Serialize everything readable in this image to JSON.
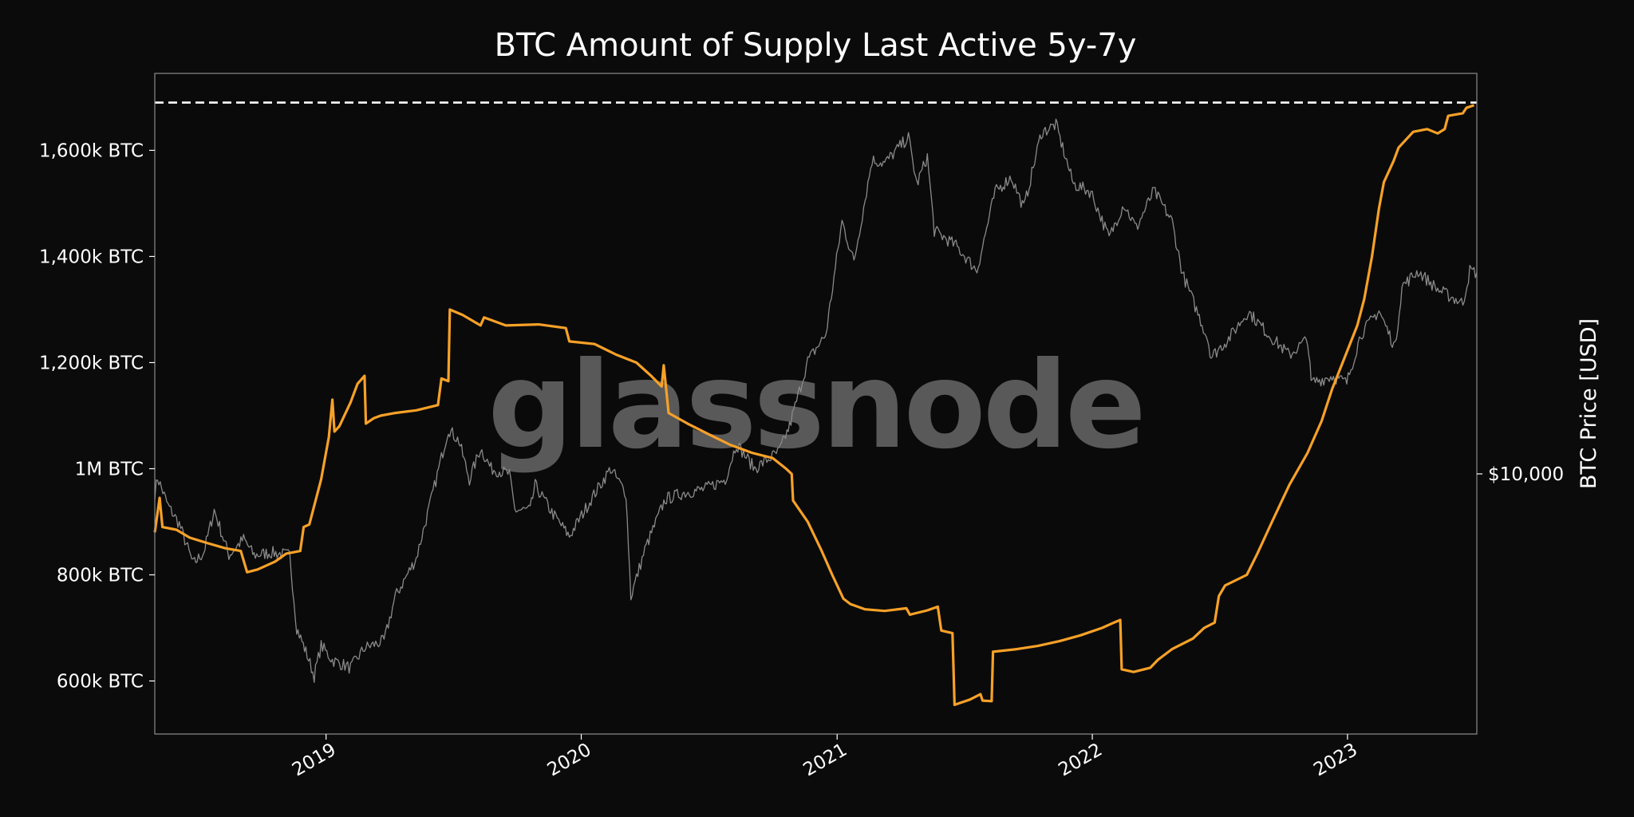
{
  "chart_data": {
    "type": "line",
    "title": "BTC Amount of Supply Last Active 5y-7y",
    "watermark": "glassnode",
    "grid": false,
    "legend": "none",
    "x_range": [
      "2018-05-01",
      "2023-07-05"
    ],
    "x_ticks": [
      {
        "label": "2019",
        "date": "2019-01-01"
      },
      {
        "label": "2020",
        "date": "2020-01-01"
      },
      {
        "label": "2021",
        "date": "2021-01-01"
      },
      {
        "label": "2022",
        "date": "2022-01-01"
      },
      {
        "label": "2023",
        "date": "2023-01-01"
      }
    ],
    "y_left": {
      "label": "",
      "range_kbtc": [
        500,
        1745
      ],
      "ticks": [
        {
          "label": "600k BTC",
          "value": 600
        },
        {
          "label": "800k BTC",
          "value": 800
        },
        {
          "label": "1M BTC",
          "value": 1000
        },
        {
          "label": "1,200k BTC",
          "value": 1200
        },
        {
          "label": "1,400k BTC",
          "value": 1400
        },
        {
          "label": "1,600k BTC",
          "value": 1600
        }
      ]
    },
    "y_right": {
      "label": "BTC Price [USD]",
      "scale": "log",
      "range_usd": [
        2400,
        90000
      ],
      "ticks": [
        {
          "label": "$10,000",
          "value": 10000
        }
      ]
    },
    "ath_line_kbtc": 1690,
    "colors": {
      "background": "#0b0b0b",
      "plot_background": "#0a0a0a",
      "frame": "#8c8c8c",
      "supply": "#f7a128",
      "price": "#8a8a8a",
      "ath_line": "#ffffff"
    },
    "series": [
      {
        "name": "Supply Last Active 5y-7y",
        "unit": "k BTC",
        "axis": "left",
        "points": [
          [
            "2018-05-01",
            880
          ],
          [
            "2018-05-08",
            945
          ],
          [
            "2018-05-12",
            890
          ],
          [
            "2018-06-01",
            885
          ],
          [
            "2018-06-20",
            870
          ],
          [
            "2018-07-15",
            860
          ],
          [
            "2018-08-10",
            850
          ],
          [
            "2018-09-01",
            845
          ],
          [
            "2018-09-10",
            805
          ],
          [
            "2018-09-25",
            810
          ],
          [
            "2018-10-20",
            825
          ],
          [
            "2018-11-05",
            840
          ],
          [
            "2018-11-25",
            845
          ],
          [
            "2018-11-30",
            890
          ],
          [
            "2018-12-08",
            895
          ],
          [
            "2018-12-25",
            980
          ],
          [
            "2019-01-05",
            1060
          ],
          [
            "2019-01-10",
            1130
          ],
          [
            "2019-01-13",
            1070
          ],
          [
            "2019-01-20",
            1080
          ],
          [
            "2019-02-05",
            1125
          ],
          [
            "2019-02-15",
            1160
          ],
          [
            "2019-02-25",
            1175
          ],
          [
            "2019-02-27",
            1085
          ],
          [
            "2019-03-10",
            1095
          ],
          [
            "2019-03-20",
            1100
          ],
          [
            "2019-04-10",
            1105
          ],
          [
            "2019-05-10",
            1110
          ],
          [
            "2019-06-10",
            1120
          ],
          [
            "2019-06-15",
            1170
          ],
          [
            "2019-06-25",
            1165
          ],
          [
            "2019-06-27",
            1300
          ],
          [
            "2019-07-15",
            1290
          ],
          [
            "2019-08-10",
            1270
          ],
          [
            "2019-08-15",
            1285
          ],
          [
            "2019-09-15",
            1270
          ],
          [
            "2019-11-01",
            1272
          ],
          [
            "2019-12-10",
            1265
          ],
          [
            "2019-12-15",
            1240
          ],
          [
            "2020-01-20",
            1235
          ],
          [
            "2020-02-20",
            1215
          ],
          [
            "2020-03-20",
            1200
          ],
          [
            "2020-04-10",
            1175
          ],
          [
            "2020-04-25",
            1155
          ],
          [
            "2020-04-28",
            1195
          ],
          [
            "2020-05-05",
            1105
          ],
          [
            "2020-06-01",
            1085
          ],
          [
            "2020-07-01",
            1065
          ],
          [
            "2020-08-01",
            1045
          ],
          [
            "2020-09-01",
            1030
          ],
          [
            "2020-10-01",
            1020
          ],
          [
            "2020-10-20",
            1000
          ],
          [
            "2020-10-28",
            990
          ],
          [
            "2020-10-30",
            940
          ],
          [
            "2020-11-20",
            900
          ],
          [
            "2020-12-10",
            845
          ],
          [
            "2020-12-25",
            800
          ],
          [
            "2021-01-10",
            755
          ],
          [
            "2021-01-20",
            745
          ],
          [
            "2021-02-10",
            735
          ],
          [
            "2021-03-10",
            732
          ],
          [
            "2021-04-10",
            737
          ],
          [
            "2021-04-15",
            725
          ],
          [
            "2021-05-10",
            733
          ],
          [
            "2021-05-25",
            740
          ],
          [
            "2021-05-30",
            695
          ],
          [
            "2021-06-15",
            690
          ],
          [
            "2021-06-18",
            555
          ],
          [
            "2021-07-10",
            565
          ],
          [
            "2021-07-25",
            575
          ],
          [
            "2021-07-28",
            563
          ],
          [
            "2021-08-10",
            562
          ],
          [
            "2021-08-12",
            655
          ],
          [
            "2021-09-15",
            660
          ],
          [
            "2021-10-15",
            666
          ],
          [
            "2021-11-15",
            675
          ],
          [
            "2021-12-15",
            686
          ],
          [
            "2022-01-15",
            700
          ],
          [
            "2022-02-01",
            710
          ],
          [
            "2022-02-10",
            715
          ],
          [
            "2022-02-12",
            622
          ],
          [
            "2022-03-01",
            617
          ],
          [
            "2022-03-25",
            625
          ],
          [
            "2022-04-05",
            640
          ],
          [
            "2022-04-25",
            660
          ],
          [
            "2022-05-25",
            680
          ],
          [
            "2022-06-10",
            700
          ],
          [
            "2022-06-25",
            710
          ],
          [
            "2022-07-01",
            760
          ],
          [
            "2022-07-10",
            780
          ],
          [
            "2022-08-10",
            800
          ],
          [
            "2022-08-25",
            840
          ],
          [
            "2022-09-15",
            900
          ],
          [
            "2022-10-10",
            970
          ],
          [
            "2022-11-05",
            1030
          ],
          [
            "2022-11-25",
            1090
          ],
          [
            "2022-12-10",
            1150
          ],
          [
            "2022-12-25",
            1200
          ],
          [
            "2023-01-15",
            1270
          ],
          [
            "2023-01-25",
            1320
          ],
          [
            "2023-02-05",
            1400
          ],
          [
            "2023-02-15",
            1490
          ],
          [
            "2023-02-22",
            1540
          ],
          [
            "2023-03-08",
            1580
          ],
          [
            "2023-03-15",
            1605
          ],
          [
            "2023-04-05",
            1635
          ],
          [
            "2023-04-25",
            1640
          ],
          [
            "2023-05-10",
            1632
          ],
          [
            "2023-05-20",
            1640
          ],
          [
            "2023-05-25",
            1665
          ],
          [
            "2023-06-15",
            1670
          ],
          [
            "2023-06-20",
            1680
          ],
          [
            "2023-07-01",
            1685
          ]
        ]
      },
      {
        "name": "BTC Price",
        "unit": "USD",
        "axis": "right",
        "points": [
          [
            "2018-05-01",
            9000
          ],
          [
            "2018-05-05",
            9800
          ],
          [
            "2018-05-20",
            8400
          ],
          [
            "2018-06-05",
            7600
          ],
          [
            "2018-06-25",
            6100
          ],
          [
            "2018-07-10",
            6500
          ],
          [
            "2018-07-25",
            8200
          ],
          [
            "2018-08-15",
            6400
          ],
          [
            "2018-09-05",
            7000
          ],
          [
            "2018-09-20",
            6400
          ],
          [
            "2018-10-15",
            6500
          ],
          [
            "2018-11-10",
            6400
          ],
          [
            "2018-11-20",
            4300
          ],
          [
            "2018-12-05",
            3700
          ],
          [
            "2018-12-15",
            3300
          ],
          [
            "2018-12-25",
            3900
          ],
          [
            "2019-01-10",
            3600
          ],
          [
            "2019-02-05",
            3450
          ],
          [
            "2019-02-25",
            3850
          ],
          [
            "2019-03-25",
            4000
          ],
          [
            "2019-04-10",
            5100
          ],
          [
            "2019-05-10",
            6300
          ],
          [
            "2019-05-30",
            8500
          ],
          [
            "2019-06-25",
            12800
          ],
          [
            "2019-07-10",
            12000
          ],
          [
            "2019-07-25",
            9700
          ],
          [
            "2019-08-10",
            11500
          ],
          [
            "2019-08-25",
            10300
          ],
          [
            "2019-09-20",
            10000
          ],
          [
            "2019-09-28",
            8200
          ],
          [
            "2019-10-20",
            8200
          ],
          [
            "2019-10-27",
            9400
          ],
          [
            "2019-11-20",
            8100
          ],
          [
            "2019-12-15",
            7100
          ],
          [
            "2020-01-15",
            8700
          ],
          [
            "2020-02-12",
            10300
          ],
          [
            "2020-03-05",
            9000
          ],
          [
            "2020-03-12",
            5100
          ],
          [
            "2020-04-01",
            6600
          ],
          [
            "2020-04-30",
            8700
          ],
          [
            "2020-05-25",
            9000
          ],
          [
            "2020-06-25",
            9200
          ],
          [
            "2020-07-25",
            9700
          ],
          [
            "2020-08-10",
            11800
          ],
          [
            "2020-09-05",
            10300
          ],
          [
            "2020-10-10",
            11300
          ],
          [
            "2020-10-25",
            13000
          ],
          [
            "2020-11-20",
            18600
          ],
          [
            "2020-12-16",
            21500
          ],
          [
            "2021-01-08",
            40000
          ],
          [
            "2021-01-25",
            32000
          ],
          [
            "2021-02-20",
            56000
          ],
          [
            "2021-03-10",
            55000
          ],
          [
            "2021-04-13",
            63500
          ],
          [
            "2021-04-25",
            49000
          ],
          [
            "2021-05-10",
            57000
          ],
          [
            "2021-05-20",
            38000
          ],
          [
            "2021-06-20",
            35000
          ],
          [
            "2021-07-20",
            30500
          ],
          [
            "2021-08-15",
            47000
          ],
          [
            "2021-09-07",
            51000
          ],
          [
            "2021-09-25",
            43000
          ],
          [
            "2021-10-20",
            65000
          ],
          [
            "2021-11-10",
            68000
          ],
          [
            "2021-12-05",
            49000
          ],
          [
            "2021-12-30",
            47000
          ],
          [
            "2022-01-25",
            36500
          ],
          [
            "2022-02-15",
            44000
          ],
          [
            "2022-03-05",
            38500
          ],
          [
            "2022-03-30",
            47300
          ],
          [
            "2022-04-25",
            40000
          ],
          [
            "2022-05-10",
            30000
          ],
          [
            "2022-06-15",
            21000
          ],
          [
            "2022-06-20",
            19000
          ],
          [
            "2022-07-15",
            21000
          ],
          [
            "2022-08-12",
            24400
          ],
          [
            "2022-09-10",
            21500
          ],
          [
            "2022-10-10",
            19200
          ],
          [
            "2022-11-05",
            21000
          ],
          [
            "2022-11-10",
            16500
          ],
          [
            "2022-12-10",
            17100
          ],
          [
            "2022-12-31",
            16500
          ],
          [
            "2023-01-20",
            21500
          ],
          [
            "2023-02-15",
            24500
          ],
          [
            "2023-03-10",
            20000
          ],
          [
            "2023-03-20",
            28000
          ],
          [
            "2023-04-12",
            30400
          ],
          [
            "2023-05-10",
            27500
          ],
          [
            "2023-06-15",
            25500
          ],
          [
            "2023-06-25",
            30500
          ],
          [
            "2023-07-05",
            30200
          ]
        ]
      }
    ]
  }
}
